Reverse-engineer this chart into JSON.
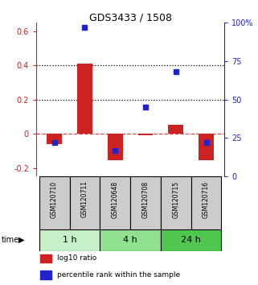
{
  "title": "GDS3433 / 1508",
  "samples": [
    "GSM120710",
    "GSM120711",
    "GSM120648",
    "GSM120708",
    "GSM120715",
    "GSM120716"
  ],
  "groups": [
    {
      "label": "1 h",
      "color": "#c8f0c8",
      "indices": [
        0,
        1
      ]
    },
    {
      "label": "4 h",
      "color": "#90e090",
      "indices": [
        2,
        3
      ]
    },
    {
      "label": "24 h",
      "color": "#50c850",
      "indices": [
        4,
        5
      ]
    }
  ],
  "log10_ratio": [
    -0.06,
    0.41,
    -0.155,
    -0.01,
    0.055,
    -0.155
  ],
  "percentile_rank": [
    22,
    97,
    17,
    45,
    68,
    22
  ],
  "ylim_left": [
    -0.25,
    0.65
  ],
  "ylim_right": [
    0,
    100
  ],
  "yticks_left": [
    -0.2,
    0.0,
    0.2,
    0.4,
    0.6
  ],
  "yticks_right": [
    0,
    25,
    50,
    75,
    100
  ],
  "ytick_labels_left": [
    "-0.2",
    "0",
    "0.2",
    "0.4",
    "0.6"
  ],
  "ytick_labels_right": [
    "0",
    "25",
    "50",
    "75",
    "100%"
  ],
  "hlines_dotted": [
    0.2,
    0.4
  ],
  "hline_dashed": 0.0,
  "bar_width": 0.5,
  "red_color": "#cc2222",
  "blue_color": "#2222cc",
  "dashed_line_color": "#dd4444",
  "sample_box_color": "#cccccc",
  "time_label": "time"
}
